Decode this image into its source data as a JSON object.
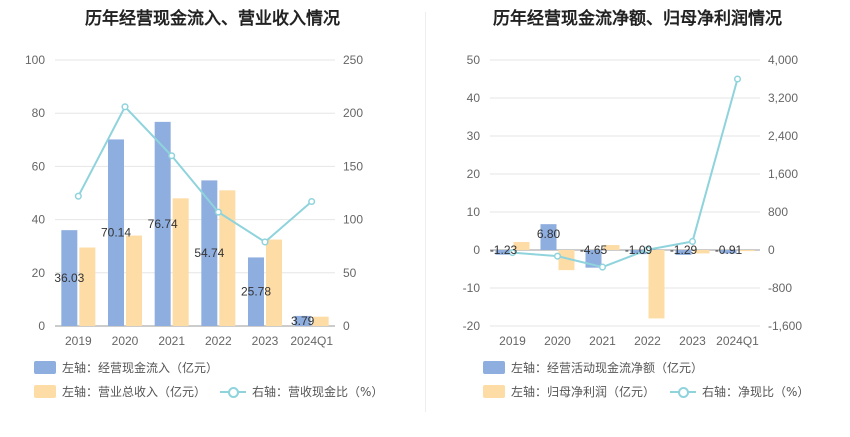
{
  "chart_data": [
    {
      "type": "bar",
      "title": "历年经营现金流入、营业收入情况",
      "categories": [
        "2019",
        "2020",
        "2021",
        "2022",
        "2023",
        "2024Q1"
      ],
      "y_left": {
        "ticks": [
          "0",
          "20",
          "40",
          "60",
          "80",
          "100"
        ],
        "ylim": [
          0,
          100
        ]
      },
      "y_right": {
        "ticks": [
          "0",
          "50",
          "100",
          "150",
          "200",
          "250"
        ],
        "ylim": [
          0,
          250
        ]
      },
      "series": [
        {
          "name": "左轴：经营现金流入（亿元）",
          "axis": "left",
          "kind": "bar",
          "color": "#8eaedf",
          "values": [
            36.03,
            70.14,
            76.74,
            54.74,
            25.78,
            3.79
          ],
          "labels": [
            "36.03",
            "70.14",
            "76.74",
            "54.74",
            "25.78",
            "3.79"
          ]
        },
        {
          "name": "左轴：营业总收入（亿元）",
          "axis": "left",
          "kind": "bar",
          "color": "#fddca6",
          "values": [
            29.5,
            34.0,
            48.0,
            51.0,
            32.5,
            3.5
          ]
        },
        {
          "name": "右轴：营收现金比（%）",
          "axis": "right",
          "kind": "line",
          "color": "#8fd3dc",
          "values": [
            122,
            206,
            160,
            107,
            79,
            117
          ]
        }
      ],
      "legend": "bottom"
    },
    {
      "type": "bar",
      "title": "历年经营现金流净额、归母净利润情况",
      "categories": [
        "2019",
        "2020",
        "2021",
        "2022",
        "2023",
        "2024Q1"
      ],
      "y_left": {
        "ticks": [
          "-20",
          "-10",
          "0",
          "10",
          "20",
          "30",
          "40",
          "50"
        ],
        "ylim": [
          -20,
          50
        ]
      },
      "y_right": {
        "ticks": [
          "-1,600",
          "-800",
          "0",
          "800",
          "1,600",
          "2,400",
          "3,200",
          "4,000"
        ],
        "ylim": [
          -1600,
          4000
        ]
      },
      "series": [
        {
          "name": "左轴：经营活动现金流净额（亿元）",
          "axis": "left",
          "kind": "bar",
          "color": "#8eaedf",
          "values": [
            -1.23,
            6.8,
            -4.65,
            -1.09,
            -1.29,
            -0.91
          ],
          "labels": [
            "-1.23",
            "6.80",
            "-4.65",
            "-1.09",
            "-1.29",
            "-0.91"
          ]
        },
        {
          "name": "左轴：归母净利润（亿元）",
          "axis": "left",
          "kind": "bar",
          "color": "#fddca6",
          "values": [
            2.1,
            -5.3,
            1.3,
            -18.0,
            -0.9,
            -0.3
          ]
        },
        {
          "name": "右轴：净现比（%）",
          "axis": "right",
          "kind": "line",
          "color": "#8fd3dc",
          "values": [
            -55,
            -130,
            -360,
            5,
            180,
            3600
          ]
        }
      ],
      "legend": "bottom"
    }
  ]
}
